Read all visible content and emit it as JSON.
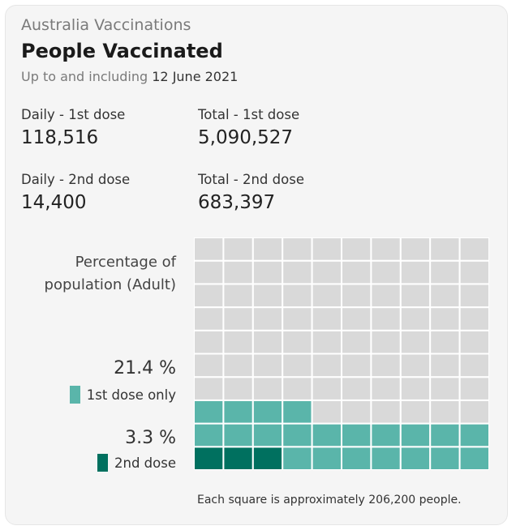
{
  "header": {
    "kicker": "Australia Vaccinations",
    "title": "People Vaccinated",
    "date_prefix": "Up to and including",
    "date": "12 June 2021"
  },
  "stats": {
    "daily_first_label": "Daily - 1st dose",
    "daily_first_value": "118,516",
    "total_first_label": "Total - 1st dose",
    "total_first_value": "5,090,527",
    "daily_second_label": "Daily - 2nd dose",
    "daily_second_value": "14,400",
    "total_second_label": "Total - 2nd dose",
    "total_second_value": "683,397"
  },
  "chart_labels": {
    "title_line1": "Percentage of",
    "title_line2": "population (Adult)",
    "first_only_pct": "21.4 %",
    "first_only_label": "1st dose only",
    "second_pct": "3.3 %",
    "second_label": "2nd dose",
    "footnote": "Each square is approximately 206,200 people."
  },
  "colors": {
    "empty": "#d9d9d9",
    "first_dose": "#5ab5aa",
    "second_dose": "#00705f",
    "grid_line": "#ffffff"
  },
  "chart_data": {
    "type": "waffle",
    "columns": 10,
    "rows": 10,
    "cells_second_dose": 3,
    "cells_first_dose_only": 21,
    "cells_total": 100
  }
}
